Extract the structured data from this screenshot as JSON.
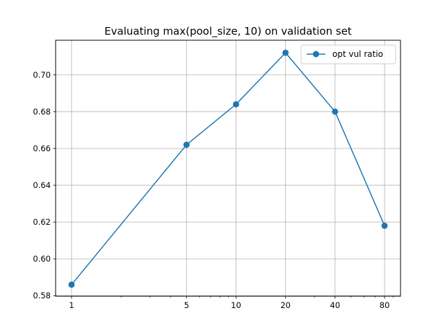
{
  "chart_data": {
    "type": "line",
    "title": "Evaluating max(pool_size, 10) on validation set",
    "xlabel": "",
    "ylabel": "",
    "x_scale": "log",
    "x": [
      1,
      5,
      10,
      20,
      40,
      80
    ],
    "x_tick_labels": [
      "1",
      "5",
      "10",
      "20",
      "40",
      "80"
    ],
    "xlim": [
      0.8,
      100
    ],
    "ylim": [
      0.5797,
      0.7188
    ],
    "y_ticks": [
      0.58,
      0.6,
      0.62,
      0.64,
      0.66,
      0.68,
      0.7
    ],
    "y_tick_labels": [
      "0.58",
      "0.60",
      "0.62",
      "0.64",
      "0.66",
      "0.68",
      "0.70"
    ],
    "series": [
      {
        "name": "opt vul ratio",
        "color": "#1f77b4",
        "marker": "circle",
        "values": [
          0.586,
          0.662,
          0.684,
          0.712,
          0.68,
          0.618
        ]
      }
    ],
    "grid": true,
    "legend_position": "top-right"
  }
}
